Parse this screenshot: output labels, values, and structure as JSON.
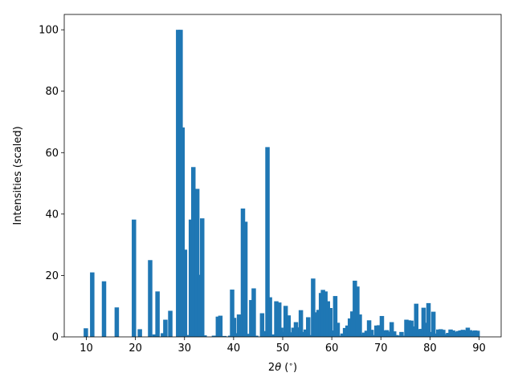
{
  "chart_data": {
    "type": "bar",
    "xlabel_prefix": "2",
    "xlabel_theta": "θ",
    "xlabel_suffix": " (",
    "xlabel_degree": "∘",
    "xlabel_close": ")",
    "ylabel": "Intensities (scaled)",
    "xlim": [
      5.5,
      94.5
    ],
    "ylim": [
      0,
      105
    ],
    "xticks": [
      10,
      20,
      30,
      40,
      50,
      60,
      70,
      80,
      90
    ],
    "yticks": [
      0,
      20,
      40,
      60,
      80,
      100
    ],
    "bar_width": 0.9,
    "color": "#1f77b4",
    "x": [
      9.9,
      11.2,
      13.6,
      16.2,
      19.7,
      20.9,
      23.0,
      23.9,
      24.5,
      25.6,
      26.1,
      27.1,
      28.7,
      29.2,
      29.6,
      30.1,
      30.6,
      31.3,
      31.8,
      32.6,
      33.1,
      33.6,
      34.1,
      36.0,
      36.8,
      37.3,
      38.1,
      39.3,
      39.7,
      40.1,
      40.6,
      41.1,
      41.9,
      42.4,
      43.1,
      43.6,
      44.1,
      44.6,
      45.8,
      46.3,
      46.9,
      47.4,
      47.9,
      48.7,
      49.3,
      49.7,
      50.1,
      50.6,
      51.2,
      51.7,
      52.2,
      52.7,
      53.2,
      53.7,
      54.2,
      54.7,
      55.2,
      55.7,
      56.2,
      56.8,
      57.3,
      57.8,
      58.2,
      58.7,
      59.2,
      59.7,
      60.2,
      60.7,
      61.2,
      61.7,
      62.2,
      62.7,
      63.2,
      63.7,
      64.2,
      64.7,
      65.2,
      65.7,
      66.1,
      66.6,
      67.1,
      67.6,
      68.1,
      68.6,
      69.1,
      69.6,
      70.2,
      70.7,
      71.2,
      71.7,
      72.2,
      72.7,
      73.2,
      73.7,
      74.2,
      74.7,
      75.2,
      75.7,
      76.2,
      76.8,
      77.2,
      77.7,
      78.2,
      78.7,
      79.2,
      79.7,
      80.2,
      80.7,
      81.2,
      81.7,
      82.2,
      82.7,
      83.2,
      83.7,
      84.2,
      84.7,
      85.2,
      85.7,
      86.2,
      86.7,
      87.2,
      87.7,
      88.2,
      88.7,
      89.2,
      89.7
    ],
    "values": [
      2.8,
      21.0,
      18.1,
      9.6,
      38.2,
      2.5,
      25.0,
      0.8,
      14.8,
      1.2,
      5.6,
      8.5,
      100.0,
      100.0,
      68.2,
      28.4,
      0.6,
      38.2,
      55.3,
      48.2,
      20.2,
      38.6,
      0.5,
      0.4,
      6.6,
      6.9,
      0.3,
      0.4,
      15.4,
      6.2,
      1.2,
      7.3,
      41.8,
      37.5,
      1.0,
      12.0,
      15.8,
      0.4,
      7.7,
      1.9,
      61.8,
      12.9,
      0.8,
      11.6,
      11.2,
      3.0,
      1.6,
      10.1,
      7.0,
      1.5,
      3.0,
      4.8,
      3.1,
      8.7,
      1.6,
      2.4,
      6.4,
      0.6,
      19.0,
      8.0,
      8.8,
      14.3,
      15.3,
      14.8,
      11.6,
      9.4,
      2.1,
      13.3,
      4.6,
      0.4,
      1.1,
      2.9,
      3.7,
      6.0,
      8.3,
      18.3,
      16.4,
      7.3,
      0.8,
      1.4,
      2.0,
      5.4,
      2.3,
      0.6,
      3.7,
      3.8,
      6.8,
      2.1,
      2.2,
      1.7,
      4.8,
      1.8,
      0.6,
      0.4,
      1.6,
      0.4,
      5.6,
      5.4,
      5.3,
      3.4,
      10.8,
      2.5,
      2.6,
      9.5,
      4.6,
      11.0,
      1.6,
      8.2,
      1.1,
      2.4,
      2.5,
      2.3,
      0.9,
      1.3,
      2.4,
      2.1,
      1.6,
      1.9,
      2.1,
      2.3,
      2.2,
      3.0,
      2.2,
      1.9,
      2.1,
      2.0
    ]
  }
}
